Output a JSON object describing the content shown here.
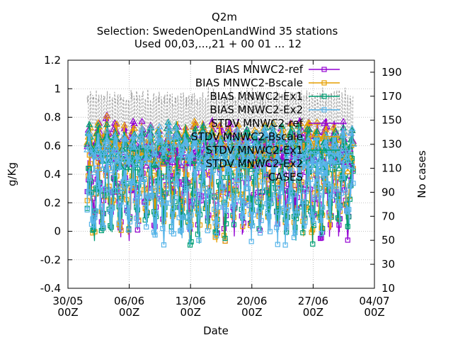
{
  "chart_data": {
    "type": "line",
    "title": "Q2m",
    "subtitle_lines": [
      "Selection: SwedenOpenLandWind     35 stations",
      "Used 00,03,...,21 + 00 01 ... 12"
    ],
    "xlabel": "Date",
    "ylabel": "g/Kg",
    "y2label": "No cases",
    "x_tick_labels": [
      [
        "30/05",
        "00Z"
      ],
      [
        "06/06",
        "00Z"
      ],
      [
        "13/06",
        "00Z"
      ],
      [
        "20/06",
        "00Z"
      ],
      [
        "27/06",
        "00Z"
      ],
      [
        "04/07",
        "00Z"
      ]
    ],
    "x_range": [
      "2021-05-30",
      "2021-07-04"
    ],
    "ylim": [
      -0.4,
      1.2
    ],
    "y_ticks": [
      -0.4,
      -0.2,
      0,
      0.2,
      0.4,
      0.6,
      0.8,
      1,
      1.2
    ],
    "y_tick_labels": [
      "-0.4",
      "-0.2",
      "0",
      "0.2",
      "0.4",
      "0.6",
      "0.8",
      "1",
      "1.2"
    ],
    "y2lim": [
      10,
      200
    ],
    "y2_ticks": [
      10,
      30,
      50,
      70,
      90,
      110,
      130,
      150,
      170,
      190
    ],
    "grid": true,
    "legend_position": "top-right",
    "series": [
      {
        "name": "BIAS MNWC2-ref",
        "color": "#9400d3",
        "marker": "square",
        "stat": "bias",
        "base": 0.3,
        "amp": 0.28,
        "seed": 1
      },
      {
        "name": "BIAS MNWC2-Bscale",
        "color": "#e69f00",
        "marker": "square",
        "stat": "bias",
        "base": 0.28,
        "amp": 0.27,
        "seed": 2
      },
      {
        "name": "BIAS MNWC2-Ex1",
        "color": "#009e73",
        "marker": "square",
        "stat": "bias",
        "base": 0.27,
        "amp": 0.28,
        "seed": 3
      },
      {
        "name": "BIAS MNWC2-Ex2",
        "color": "#56b4e9",
        "marker": "square",
        "stat": "bias",
        "base": 0.25,
        "amp": 0.27,
        "seed": 4
      },
      {
        "name": "STDV MNWC2-ref",
        "color": "#9400d3",
        "marker": "triangle",
        "stat": "stdv",
        "base": 0.62,
        "amp": 0.14,
        "seed": 5
      },
      {
        "name": "STDV MNWC2-Bscale",
        "color": "#e69f00",
        "marker": "triangle",
        "stat": "stdv",
        "base": 0.62,
        "amp": 0.14,
        "seed": 6
      },
      {
        "name": "STDV MNWC2-Ex1",
        "color": "#009e73",
        "marker": "triangle",
        "stat": "stdv",
        "base": 0.6,
        "amp": 0.13,
        "seed": 7
      },
      {
        "name": "STDV MNWC2-Ex2",
        "color": "#56b4e9",
        "marker": "triangle",
        "stat": "stdv",
        "base": 0.58,
        "amp": 0.13,
        "seed": 8
      },
      {
        "name": "CASES",
        "color": "#a0a0a0",
        "marker": "none",
        "stat": "cases",
        "axis": "y2",
        "base": 152,
        "amp": 26,
        "seed": 9
      }
    ],
    "x_start_day": 0,
    "x_end_day": 35,
    "data_start_day": 2.2,
    "data_end_day": 32.6,
    "step_hours": 1
  }
}
